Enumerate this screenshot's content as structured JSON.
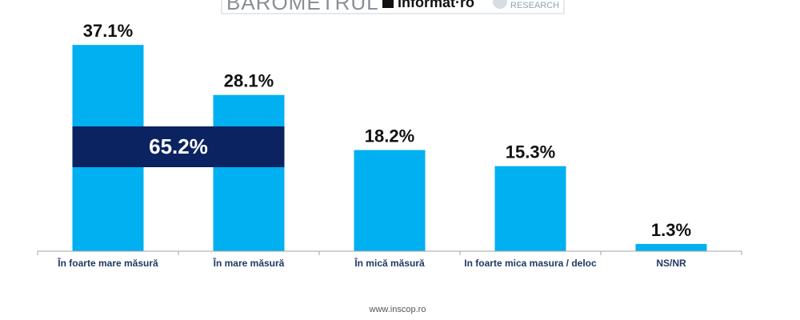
{
  "header": {
    "left": "BAROMETRUL",
    "brand": "Informat·ro",
    "right": "RESEARCH"
  },
  "chart_data": {
    "type": "bar",
    "categories": [
      "În foarte mare măsură",
      "În mare măsură",
      "În mică măsură",
      "In foarte mica masura / deloc",
      "NS/NR"
    ],
    "values": [
      37.1,
      28.1,
      18.2,
      15.3,
      1.3
    ],
    "value_labels": [
      "37.1%",
      "28.1%",
      "18.2%",
      "15.3%",
      "1.3%"
    ],
    "color": "#00b0f0",
    "ylim": [
      0,
      40
    ],
    "annotations": [
      {
        "text": "65.2%",
        "color": "#0b2361"
      }
    ],
    "source": "www.inscop.ro"
  }
}
